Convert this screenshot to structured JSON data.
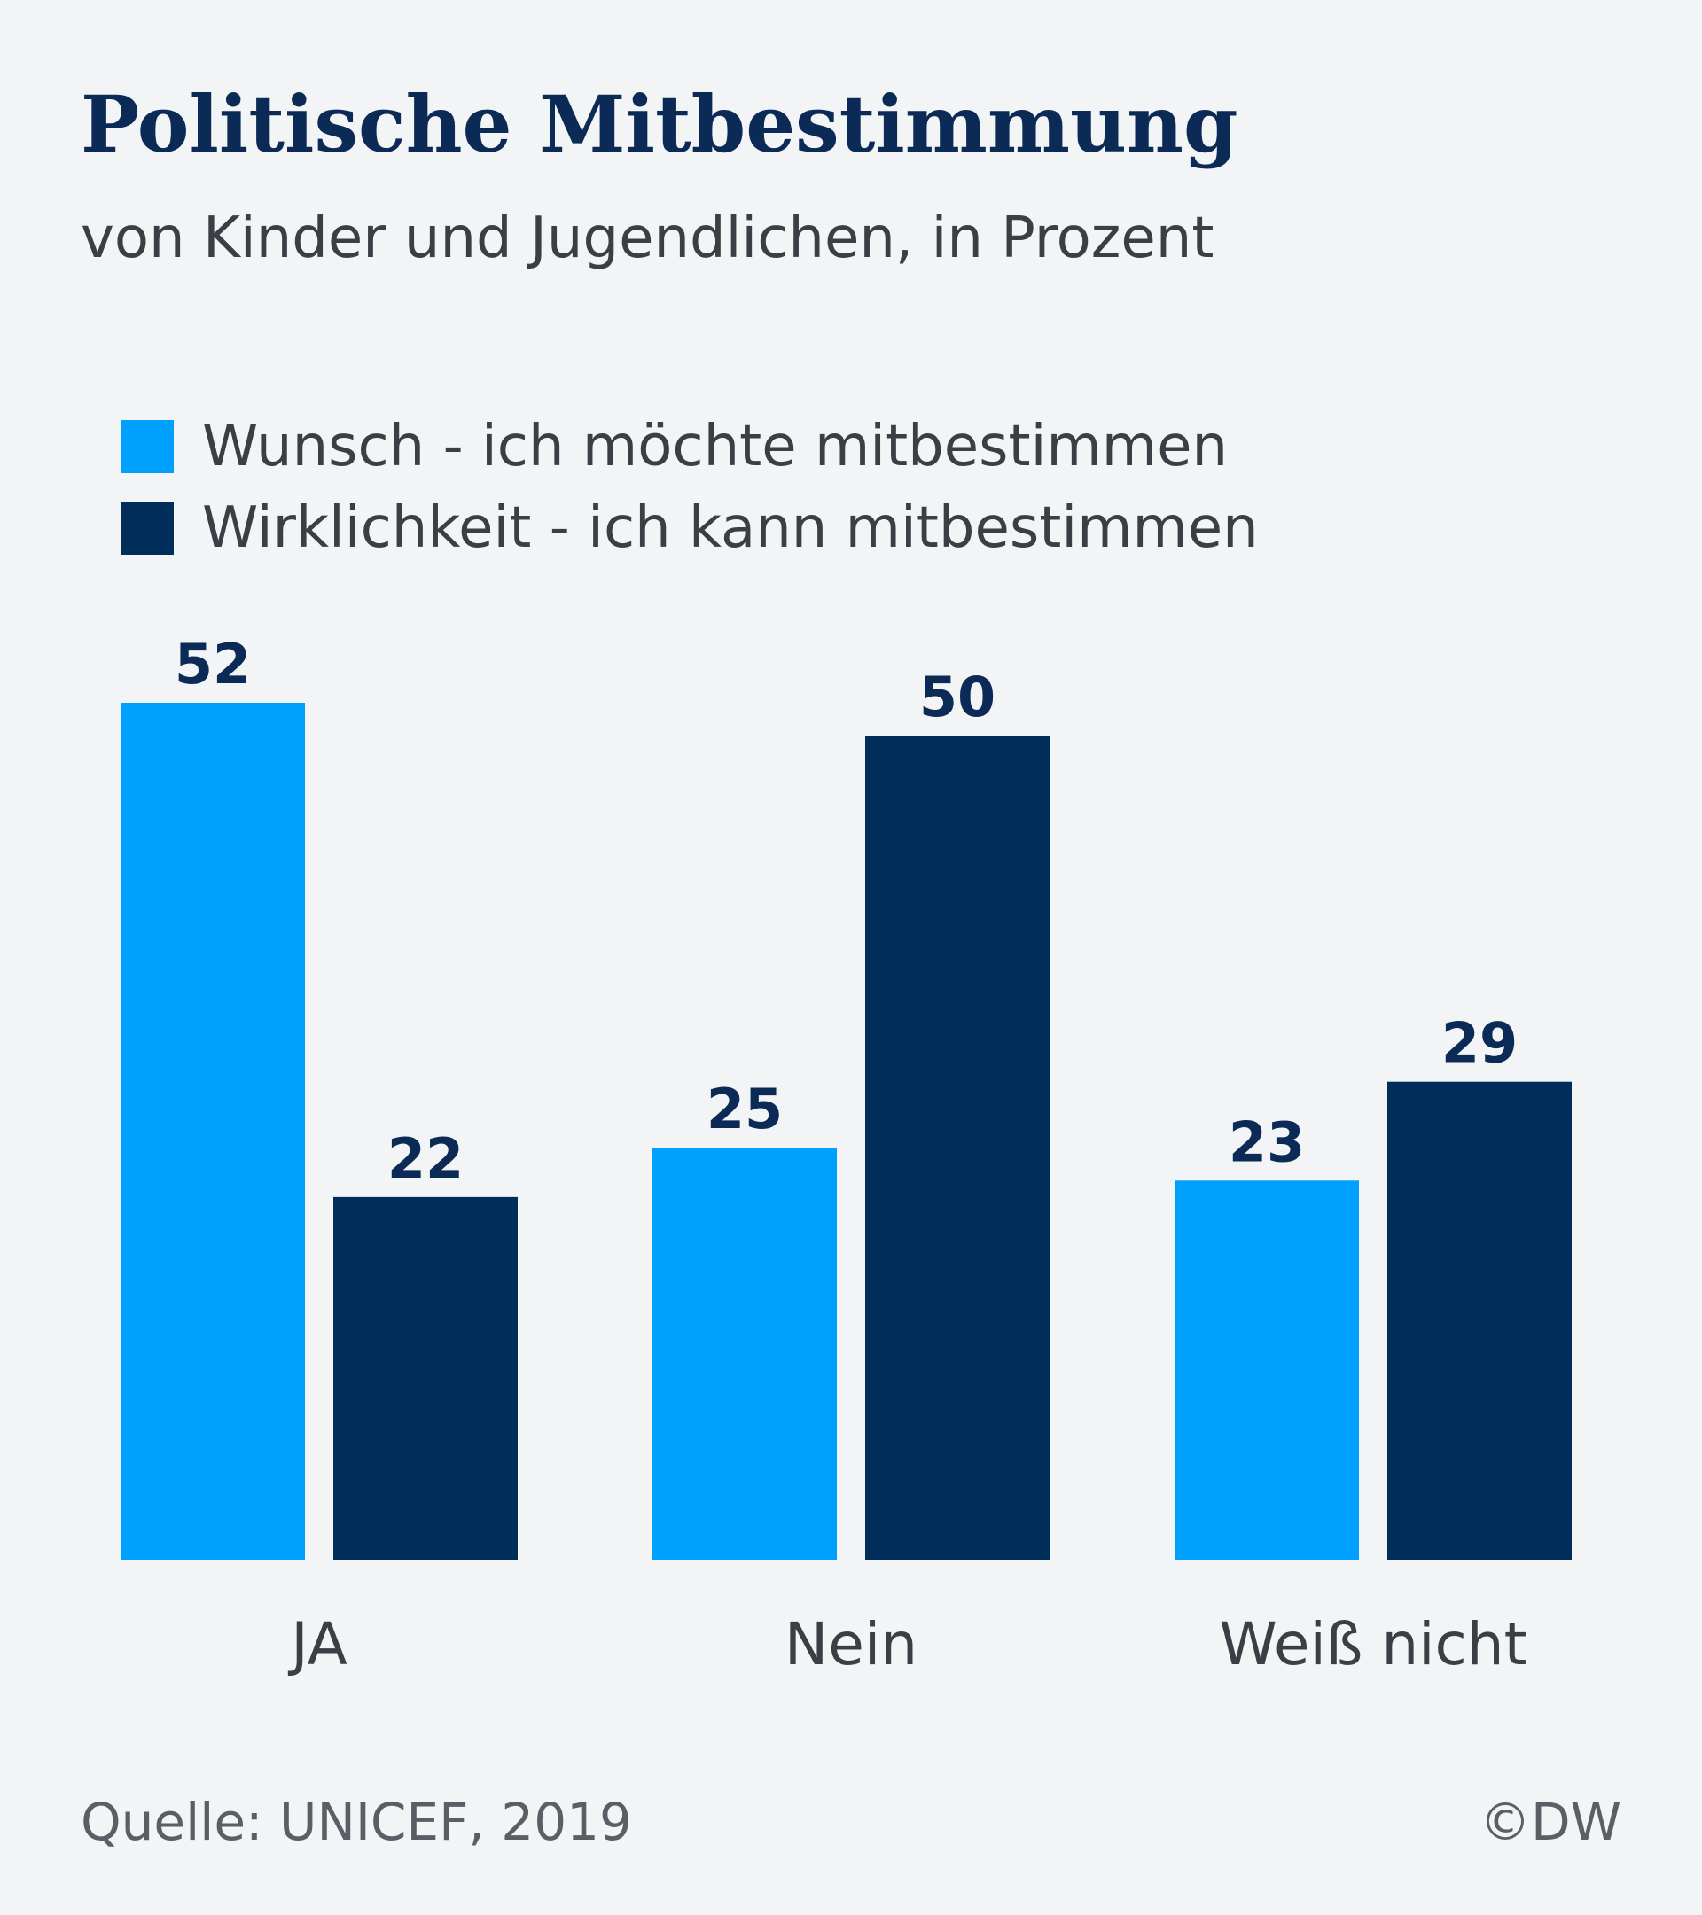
{
  "chart_data": {
    "type": "bar",
    "title": "Politische Mitbestimmung",
    "subtitle": "von Kinder und Jugendlichen, in Prozent",
    "categories": [
      "JA",
      "Nein",
      "Weiß nicht"
    ],
    "series": [
      {
        "name": "Wunsch - ich möchte mitbestimmen",
        "color": "#00a0ff",
        "values": [
          52,
          25,
          23
        ]
      },
      {
        "name": "Wirklichkeit - ich kann mitbestimmen",
        "color": "#002d5a",
        "values": [
          22,
          50,
          29
        ]
      }
    ],
    "ylim": [
      0,
      52
    ],
    "xlabel": "",
    "ylabel": "",
    "legend": "top-left",
    "grid": false
  },
  "footer": {
    "source": "Quelle: UNICEF, 2019",
    "credit": "©DW"
  },
  "colors": {
    "value_label": "#0b2a55",
    "axis_label": "#3a3f46"
  }
}
